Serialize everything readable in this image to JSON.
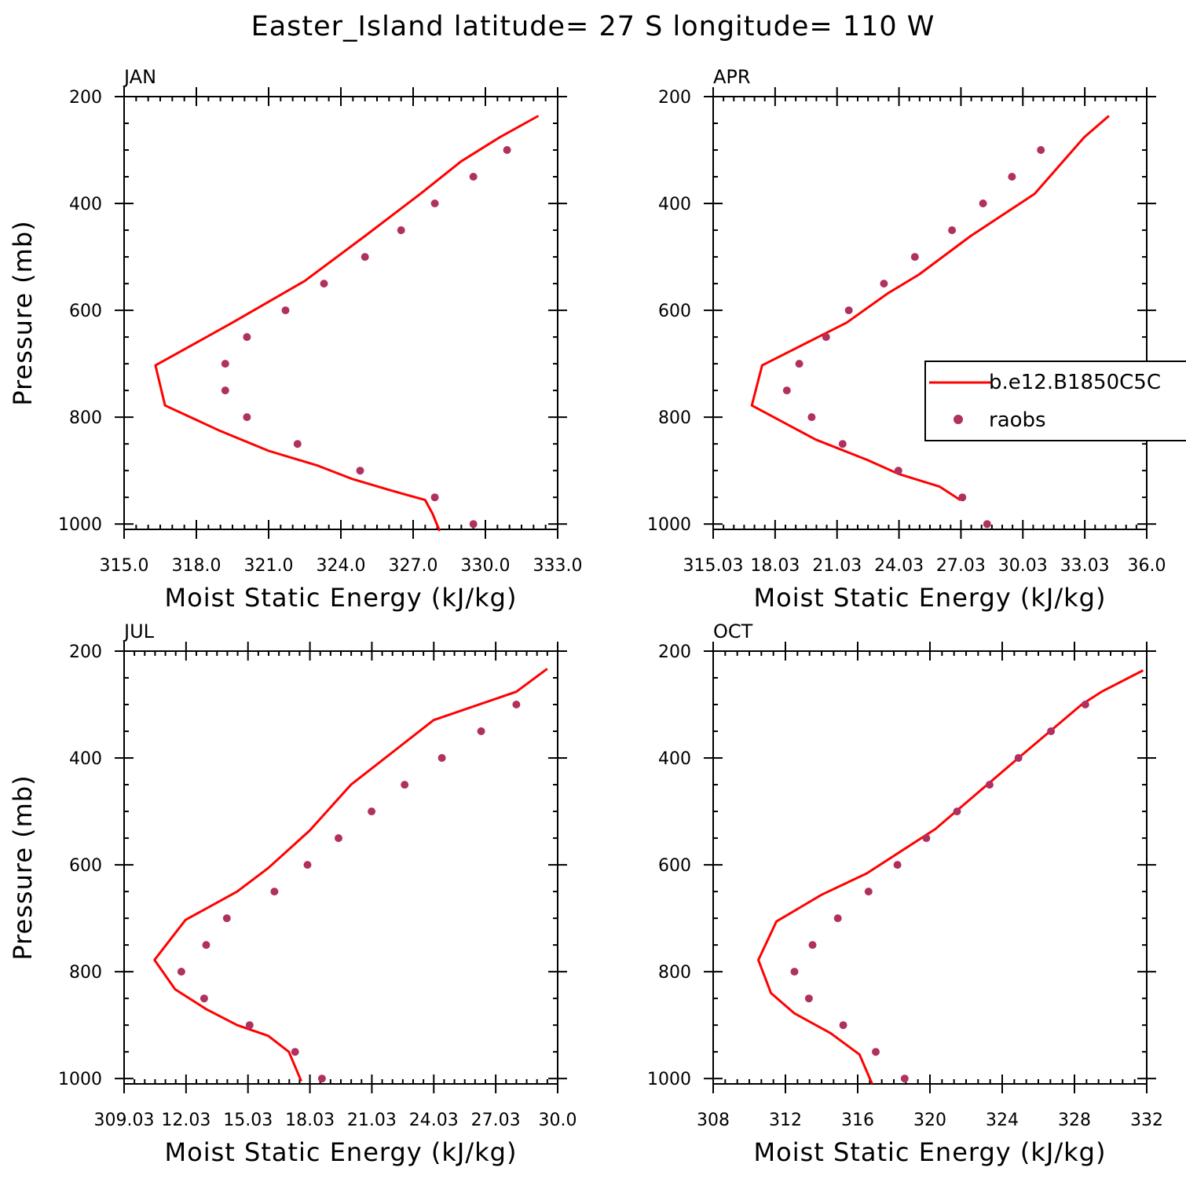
{
  "title": "Easter_Island  latitude= 27 S longitude= 110 W",
  "legend": {
    "model_label": "b.e12.B1850C5C",
    "obs_label": "raobs",
    "model_color": "#ff0000",
    "obs_color": "#b03060"
  },
  "chart_data": [
    {
      "type": "line",
      "panel": "JAN",
      "xlabel": "Moist Static Energy (kJ/kg)",
      "ylabel": "Pressure (mb)",
      "xlim": [
        315.0,
        333.0
      ],
      "ylim": [
        1010,
        200
      ],
      "xticks": [
        "315.0",
        "318.0",
        "321.0",
        "324.0",
        "327.0",
        "330.0",
        "333.0"
      ],
      "yticks": [
        "200",
        "400",
        "600",
        "800",
        "1000"
      ],
      "series": [
        {
          "name": "b.e12.B1850C5C",
          "style": "line",
          "x": [
            332.2,
            330.6,
            329.0,
            327.3,
            325.0,
            322.5,
            319.5,
            316.3,
            316.7,
            319.0,
            321.0,
            323.0,
            324.5,
            326.0,
            327.5,
            327.8,
            328.1
          ],
          "y": [
            236,
            276,
            321,
            382,
            461,
            545,
            623,
            703,
            778,
            826,
            863,
            890,
            916,
            936,
            955,
            980,
            1013
          ]
        },
        {
          "name": "raobs",
          "style": "markers",
          "x": [
            330.9,
            329.5,
            327.9,
            326.5,
            325.0,
            323.3,
            321.7,
            320.1,
            319.2,
            319.2,
            320.1,
            322.2,
            324.8,
            327.9,
            329.5
          ],
          "y": [
            300,
            350,
            400,
            450,
            500,
            550,
            600,
            650,
            700,
            750,
            800,
            850,
            900,
            950,
            1000
          ]
        }
      ]
    },
    {
      "type": "line",
      "panel": "APR",
      "xlabel": "Moist Static Energy (kJ/kg)",
      "ylabel": "",
      "xlim": [
        315.03,
        336.03
      ],
      "ylim": [
        1010,
        200
      ],
      "xticks": [
        "315.03",
        "18.03",
        "21.03",
        "24.03",
        "27.03",
        "30.03",
        "33.03",
        "36.0"
      ],
      "yticks": [
        "200",
        "400",
        "600",
        "800",
        "1000"
      ],
      "series": [
        {
          "name": "b.e12.B1850C5C",
          "style": "line",
          "x": [
            334.2,
            333.0,
            330.6,
            327.5,
            325.0,
            323.5,
            321.5,
            317.4,
            316.9,
            320.0,
            322.5,
            324.0,
            326.0,
            327.0
          ],
          "y": [
            236,
            276,
            382,
            461,
            533,
            568,
            623,
            703,
            778,
            842,
            880,
            906,
            930,
            955
          ]
        },
        {
          "name": "raobs",
          "style": "markers",
          "x": [
            330.9,
            329.5,
            328.1,
            326.6,
            324.8,
            323.3,
            321.6,
            320.5,
            319.2,
            318.6,
            319.8,
            321.3,
            324.0,
            327.1,
            328.3
          ],
          "y": [
            300,
            350,
            400,
            450,
            500,
            550,
            600,
            650,
            700,
            750,
            800,
            850,
            900,
            950,
            1000
          ]
        }
      ]
    },
    {
      "type": "line",
      "panel": "JUL",
      "xlabel": "Moist Static Energy (kJ/kg)",
      "ylabel": "Pressure (mb)",
      "xlim": [
        309.03,
        330.0
      ],
      "ylim": [
        1010,
        200
      ],
      "xticks": [
        "309.03",
        "12.03",
        "15.03",
        "18.03",
        "21.03",
        "24.03",
        "27.03",
        "30.0"
      ],
      "yticks": [
        "200",
        "400",
        "600",
        "800",
        "1000"
      ],
      "series": [
        {
          "name": "b.e12.B1850C5C",
          "style": "line",
          "x": [
            329.5,
            328.0,
            324.0,
            320.0,
            318.0,
            316.0,
            314.5,
            312.0,
            310.5,
            311.5,
            313.0,
            314.5,
            316.0,
            317.0,
            317.6
          ],
          "y": [
            233,
            276,
            329,
            450,
            536,
            606,
            650,
            703,
            778,
            833,
            870,
            900,
            920,
            950,
            1005
          ]
        },
        {
          "name": "raobs",
          "style": "markers",
          "x": [
            328.0,
            326.3,
            324.4,
            322.6,
            321.0,
            319.4,
            317.9,
            316.3,
            314.0,
            313.0,
            311.8,
            312.9,
            315.1,
            317.3,
            318.6
          ],
          "y": [
            300,
            350,
            400,
            450,
            500,
            550,
            600,
            650,
            700,
            750,
            800,
            850,
            900,
            950,
            1000
          ]
        }
      ]
    },
    {
      "type": "line",
      "panel": "OCT",
      "xlabel": "Moist Static Energy (kJ/kg)",
      "ylabel": "",
      "xlim": [
        308,
        332
      ],
      "ylim": [
        1010,
        200
      ],
      "xticks": [
        "308",
        "312",
        "316",
        "320",
        "324",
        "328",
        "332"
      ],
      "yticks": [
        "200",
        "400",
        "600",
        "800",
        "1000"
      ],
      "series": [
        {
          "name": "b.e12.B1850C5C",
          "style": "line",
          "x": [
            331.8,
            329.5,
            328.4,
            324.9,
            320.3,
            316.5,
            314.0,
            311.5,
            310.5,
            311.2,
            312.5,
            314.5,
            316.1,
            316.8
          ],
          "y": [
            236,
            276,
            300,
            400,
            533,
            616,
            656,
            706,
            778,
            840,
            878,
            915,
            955,
            1010
          ]
        },
        {
          "name": "raobs",
          "style": "markers",
          "x": [
            328.6,
            326.7,
            324.9,
            323.3,
            321.5,
            319.8,
            318.2,
            316.6,
            314.9,
            313.5,
            312.5,
            313.3,
            315.2,
            317.0,
            318.6
          ],
          "y": [
            300,
            350,
            400,
            450,
            500,
            550,
            600,
            650,
            700,
            750,
            800,
            850,
            900,
            950,
            1000
          ]
        }
      ]
    }
  ]
}
